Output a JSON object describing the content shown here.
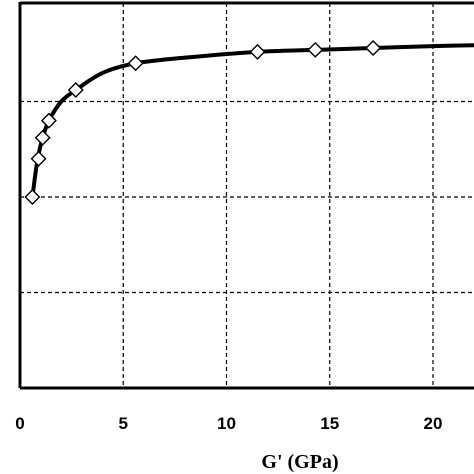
{
  "chart_data": {
    "type": "line",
    "title": "",
    "xlabel": "G' (GPa)",
    "ylabel": "",
    "xlim": [
      0,
      22
    ],
    "ylim": [
      0,
      4
    ],
    "x_ticks": [
      0,
      5,
      10,
      15,
      20
    ],
    "y_ticks": [
      1,
      2,
      3
    ],
    "grid": true,
    "legend": "none",
    "line_color": "#000000",
    "marker": "diamond-open",
    "series": [
      {
        "values": [
          {
            "x": 0.6,
            "y": 2.0
          },
          {
            "x": 0.9,
            "y": 2.4
          },
          {
            "x": 1.1,
            "y": 2.62
          },
          {
            "x": 1.4,
            "y": 2.8
          },
          {
            "x": 2.7,
            "y": 3.12
          },
          {
            "x": 5.6,
            "y": 3.4
          },
          {
            "x": 11.5,
            "y": 3.52
          },
          {
            "x": 14.3,
            "y": 3.54
          },
          {
            "x": 17.1,
            "y": 3.56
          }
        ]
      }
    ],
    "curve": [
      [
        0.6,
        2.0
      ],
      [
        0.75,
        2.25
      ],
      [
        0.9,
        2.45
      ],
      [
        1.1,
        2.62
      ],
      [
        1.4,
        2.8
      ],
      [
        2.0,
        3.0
      ],
      [
        2.7,
        3.12
      ],
      [
        4.0,
        3.3
      ],
      [
        5.6,
        3.4
      ],
      [
        8.0,
        3.46
      ],
      [
        11.5,
        3.52
      ],
      [
        14.3,
        3.54
      ],
      [
        17.1,
        3.56
      ],
      [
        20.0,
        3.58
      ],
      [
        22.0,
        3.59
      ]
    ]
  }
}
